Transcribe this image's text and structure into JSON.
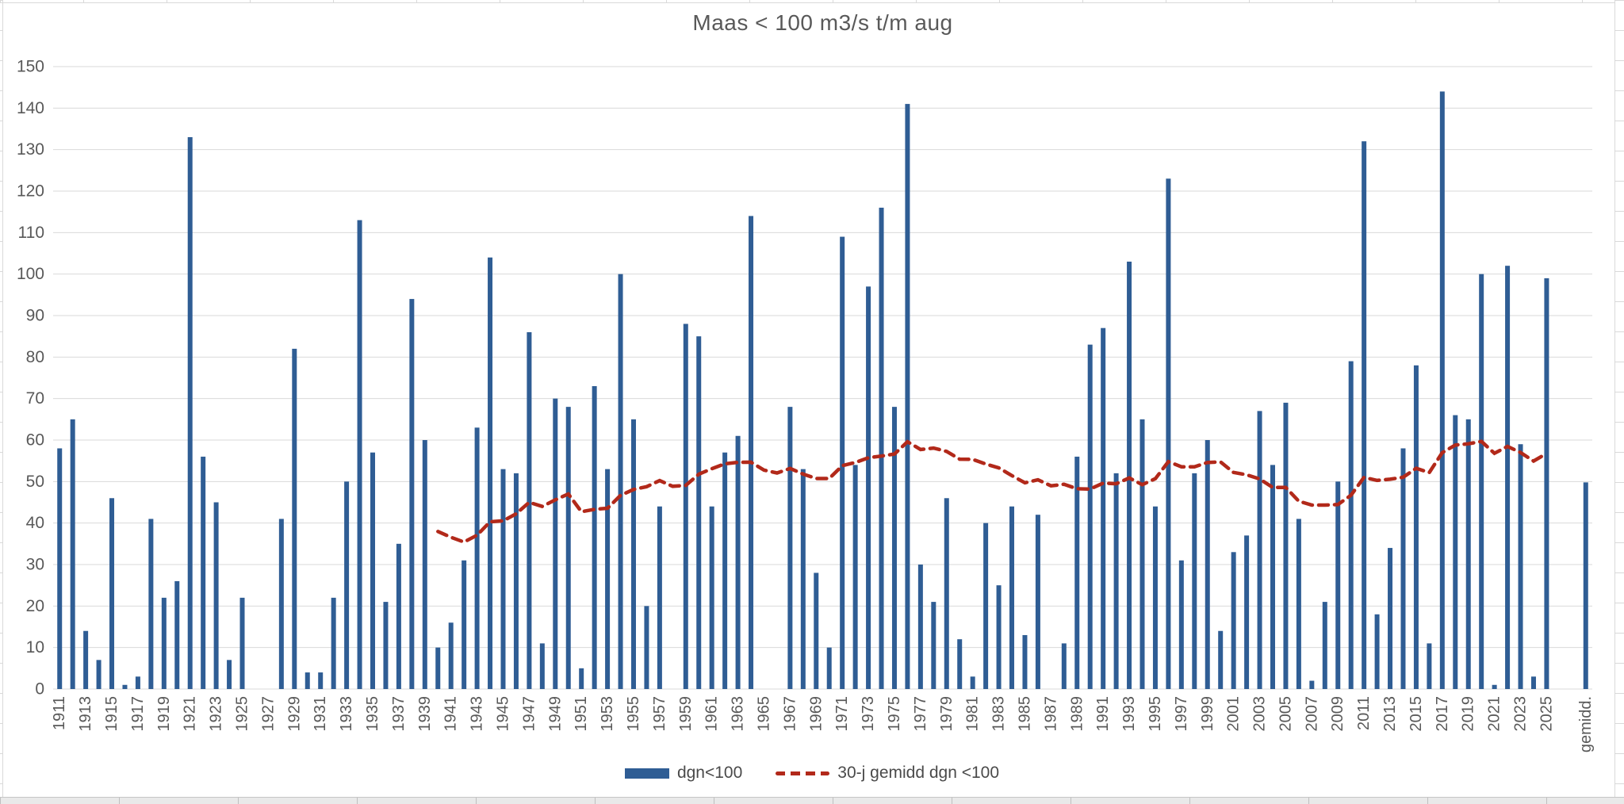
{
  "chart_data": {
    "type": "bar",
    "title": "Maas < 100 m3/s t/m aug",
    "bar_series_name": "dgn<100",
    "year_start": 1911,
    "year_end": 2025,
    "values": [
      58,
      65,
      14,
      7,
      46,
      1,
      3,
      41,
      22,
      26,
      133,
      56,
      45,
      7,
      22,
      0,
      0,
      41,
      82,
      4,
      4,
      22,
      50,
      113,
      57,
      21,
      35,
      94,
      60,
      10,
      16,
      31,
      63,
      104,
      53,
      52,
      86,
      11,
      70,
      68,
      5,
      73,
      53,
      100,
      65,
      20,
      44,
      0,
      88,
      85,
      44,
      57,
      61,
      114,
      0,
      0,
      68,
      53,
      28,
      10,
      109,
      54,
      97,
      116,
      68,
      141,
      30,
      21,
      46,
      12,
      3,
      40,
      25,
      44,
      13,
      42,
      0,
      11,
      56,
      83,
      87,
      52,
      103,
      65,
      44,
      123,
      31,
      52,
      60,
      14,
      33,
      37,
      67,
      54,
      69,
      41,
      2,
      21,
      50,
      79,
      132,
      18,
      34,
      58,
      78,
      11,
      144,
      66,
      65,
      100,
      1,
      102,
      59,
      3,
      99
    ],
    "average_bar": {
      "label": "gemidd.",
      "value": 49.8
    },
    "line_series": {
      "name": "30-j gemidd dgn <100",
      "derived_from": "trailing 30-year mean of bar values",
      "window": 30,
      "first_plotted_year": 1940
    },
    "ylim": [
      0,
      150
    ],
    "ytick_step": 10,
    "ytick_labels": [
      "0",
      "10",
      "20",
      "30",
      "40",
      "50",
      "60",
      "70",
      "80",
      "90",
      "100",
      "110",
      "120",
      "130",
      "140",
      "150"
    ],
    "xtick_labels": [
      "1911",
      "1913",
      "1915",
      "1917",
      "1919",
      "1921",
      "1923",
      "1925",
      "1927",
      "1929",
      "1931",
      "1933",
      "1935",
      "1937",
      "1939",
      "1941",
      "1943",
      "1945",
      "1947",
      "1949",
      "1951",
      "1953",
      "1955",
      "1957",
      "1959",
      "1961",
      "1963",
      "1965",
      "1967",
      "1969",
      "1971",
      "1973",
      "1975",
      "1977",
      "1979",
      "1981",
      "1983",
      "1985",
      "1987",
      "1989",
      "1991",
      "1993",
      "1995",
      "1997",
      "1999",
      "2001",
      "2003",
      "2005",
      "2007",
      "2009",
      "2011",
      "2013",
      "2015",
      "2017",
      "2019",
      "2021",
      "2023",
      "2025",
      "gemidd."
    ],
    "grid": true,
    "legend_position": "bottom",
    "legend": [
      {
        "label": "dgn<100",
        "marker": "bar-swatch",
        "color": "#2F5D94"
      },
      {
        "label": "30-j gemidd dgn <100",
        "marker": "dashed-line",
        "color": "#B2291A"
      }
    ],
    "colors": {
      "bar": "#2F5D94",
      "line": "#B2291A",
      "grid": "#D9D9D9",
      "text": "#595959"
    }
  }
}
